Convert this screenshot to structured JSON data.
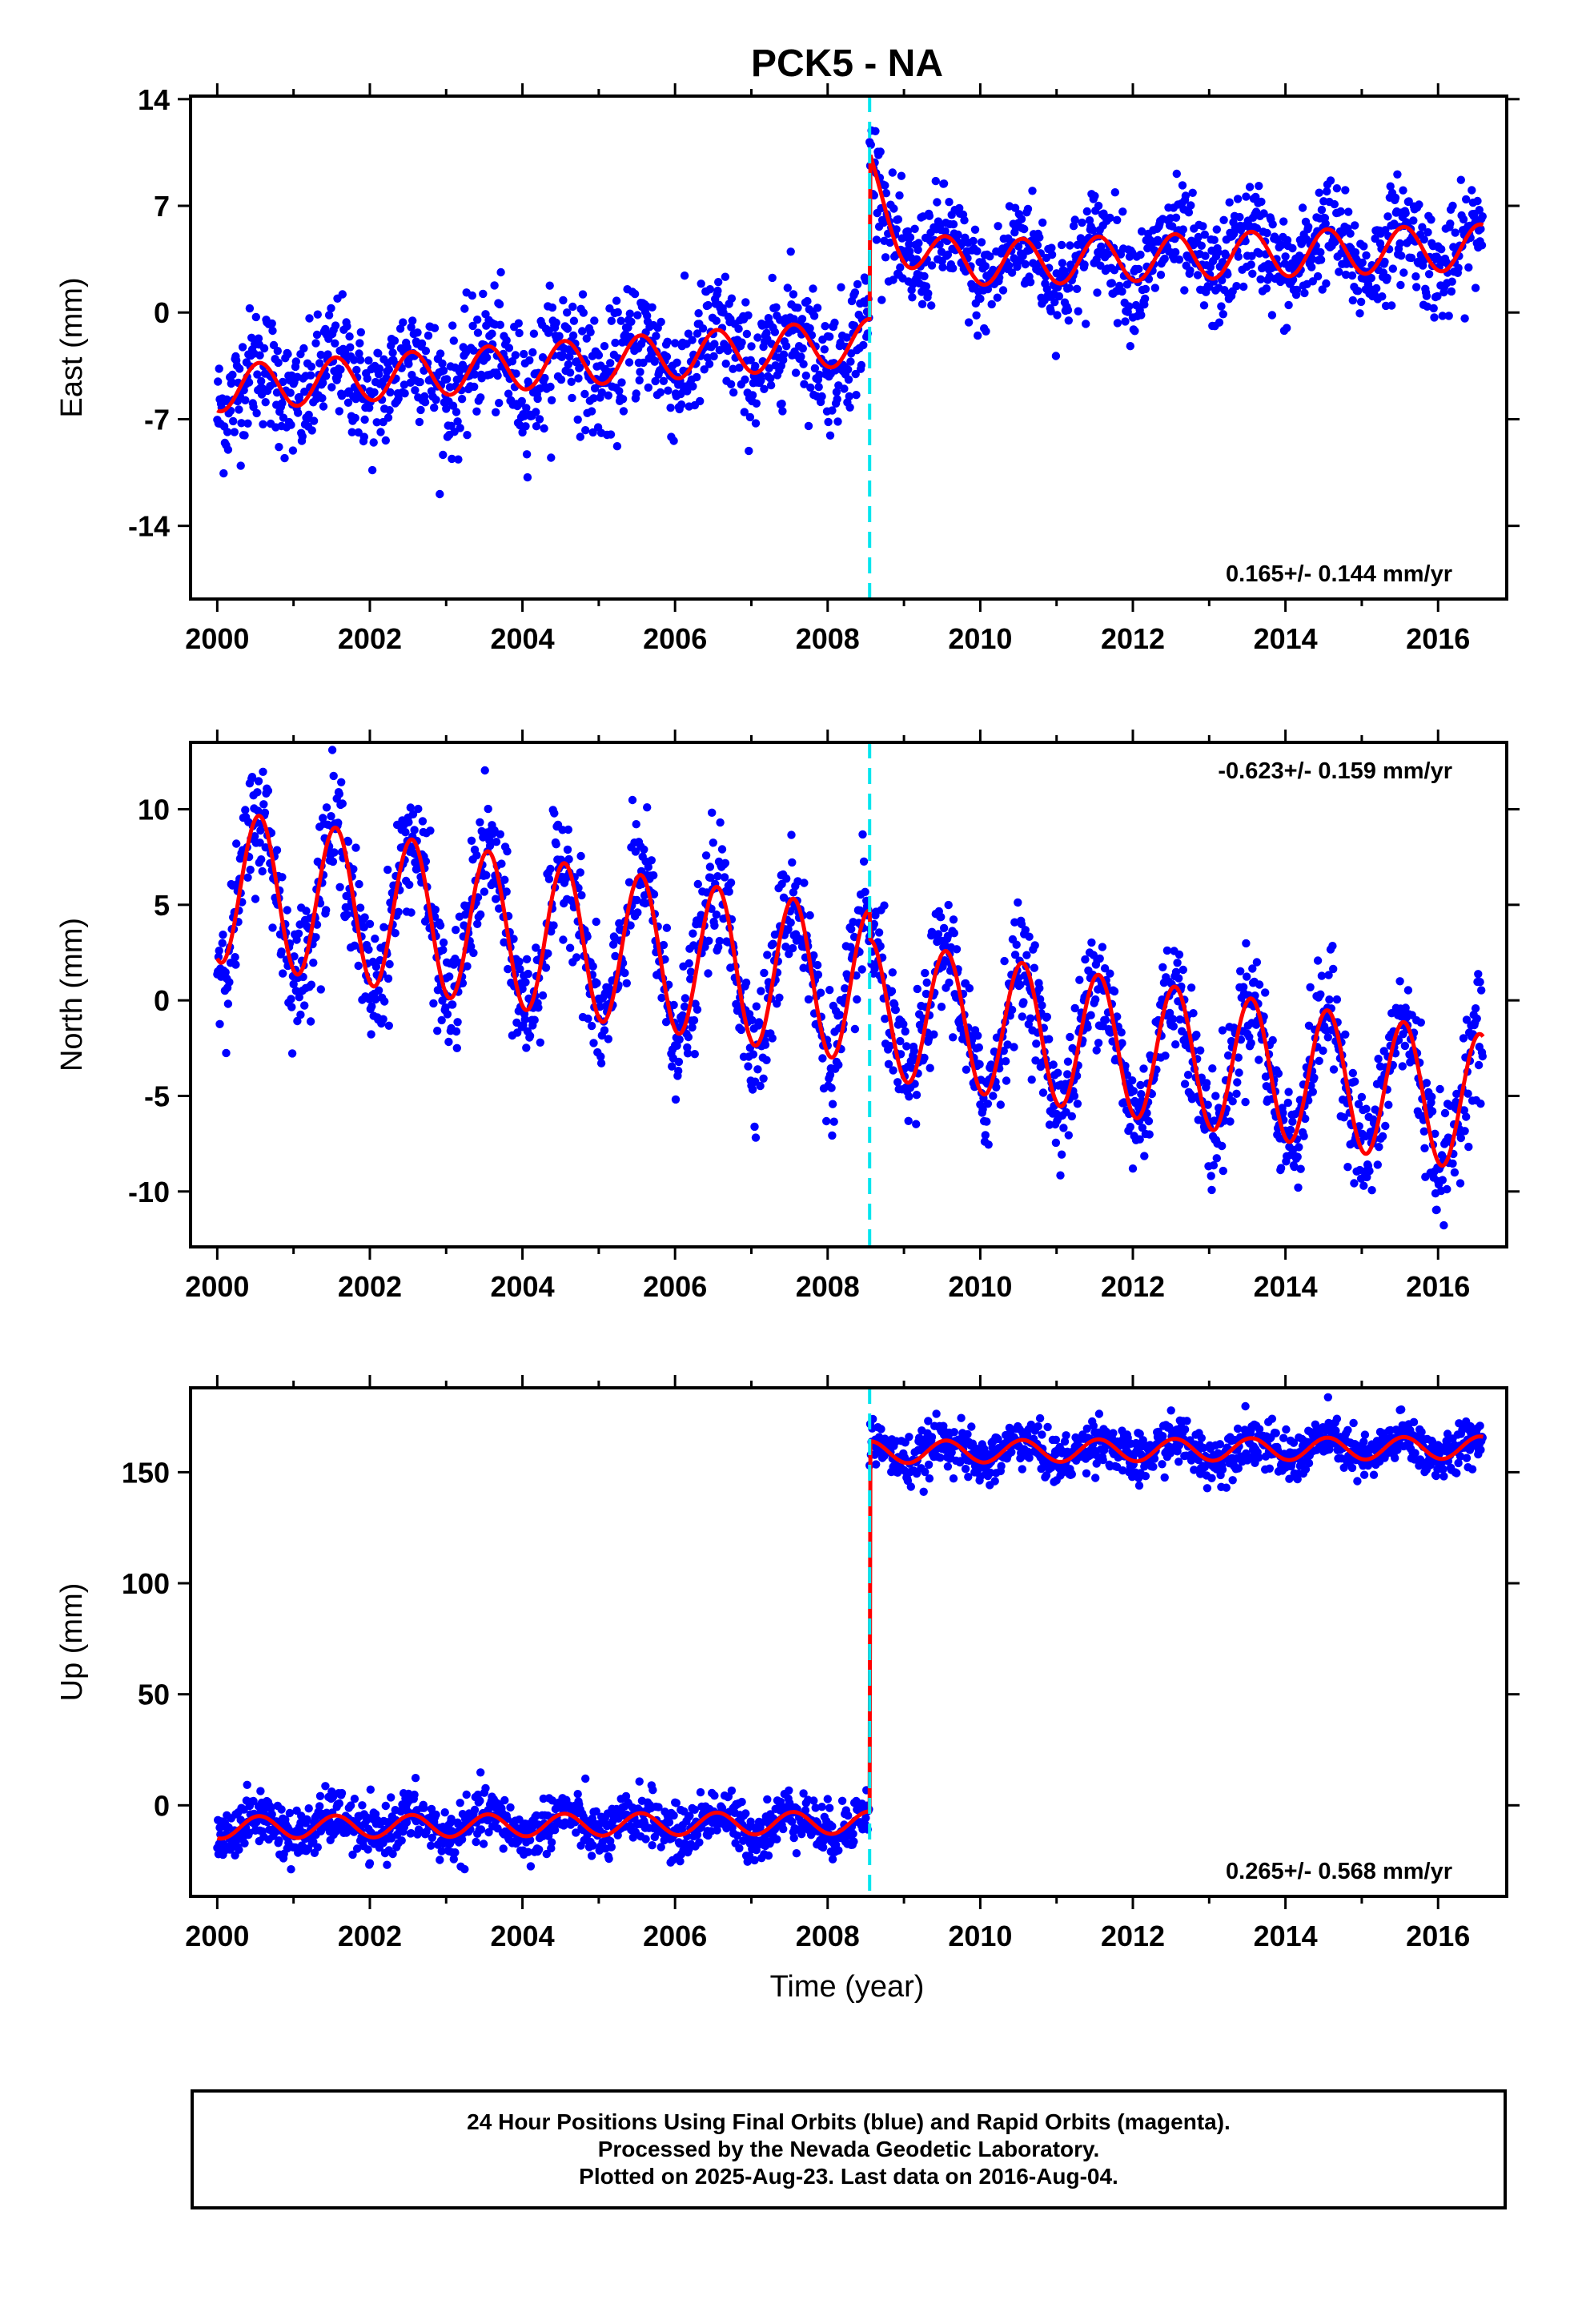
{
  "title": "PCK5 - NA",
  "colors": {
    "points": "#0000ff",
    "model": "#ff0000",
    "offset_line": "#00e5ee",
    "frame": "#000000"
  },
  "footer": {
    "line1": "24 Hour Positions Using Final Orbits (blue) and Rapid Orbits (magenta).",
    "line2": "Processed by the Nevada Geodetic Laboratory.",
    "line3": "Plotted on 2025-Aug-23. Last data on 2016-Aug-04."
  },
  "chart_data": [
    {
      "type": "scatter",
      "panel": "east",
      "ylabel": "East (mm)",
      "xlabel": "",
      "xlim": [
        1999.65,
        2016.9
      ],
      "ylim": [
        -18.8,
        14.2
      ],
      "xticks": [
        2000,
        2002,
        2004,
        2006,
        2008,
        2010,
        2012,
        2014,
        2016
      ],
      "yticks": [
        -14,
        -7,
        0,
        7,
        14
      ],
      "offset_epoch": 2008.55,
      "rate_label": "0.165+/- 0.144 mm/yr",
      "rate_position": "bottom-right",
      "data_range": [
        2000.0,
        2016.59
      ],
      "model": {
        "pre": {
          "a": -5.0,
          "b": 0.36,
          "amp": 1.5,
          "noise": 2.0
        },
        "post": {
          "a": 3.0,
          "b": 0.16,
          "amp": 1.5,
          "noise": 1.7
        },
        "post_transient": {
          "amp": 6.0,
          "tau": 0.35
        }
      }
    },
    {
      "type": "scatter",
      "panel": "north",
      "ylabel": "North (mm)",
      "xlabel": "",
      "xlim": [
        1999.65,
        2016.9
      ],
      "ylim": [
        -12.9,
        13.5
      ],
      "xticks": [
        2000,
        2002,
        2004,
        2006,
        2008,
        2010,
        2012,
        2014,
        2016
      ],
      "yticks": [
        -10,
        -5,
        0,
        5,
        10
      ],
      "offset_epoch": 2008.55,
      "rate_label": "-0.623+/- 0.159 mm/yr",
      "rate_position": "top-right",
      "data_range": [
        2000.0,
        2016.59
      ],
      "model": {
        "pre": {
          "a": 6.0,
          "b": -0.62,
          "amp": 4.0,
          "noise": 1.6
        },
        "post": {
          "a": -0.4,
          "b": -0.62,
          "amp": 3.6,
          "noise": 1.5
        },
        "post_transient": {
          "amp": 0,
          "tau": 1
        }
      }
    },
    {
      "type": "scatter",
      "panel": "up",
      "ylabel": "Up (mm)",
      "xlabel": "Time (year)",
      "xlim": [
        1999.65,
        2016.9
      ],
      "ylim": [
        -41,
        188
      ],
      "xticks": [
        2000,
        2002,
        2004,
        2006,
        2008,
        2010,
        2012,
        2014,
        2016
      ],
      "yticks": [
        0,
        50,
        100,
        150
      ],
      "offset_epoch": 2008.55,
      "rate_label": "0.265+/- 0.568 mm/yr",
      "rate_position": "bottom-right",
      "data_range": [
        2000.0,
        2016.59
      ],
      "model": {
        "pre": {
          "a": -10.0,
          "b": 0.265,
          "amp": 5.0,
          "noise": 6.0
        },
        "post": {
          "a": 159.0,
          "b": 0.265,
          "amp": 5.0,
          "noise": 5.5
        },
        "post_transient": {
          "amp": 0,
          "tau": 1
        }
      }
    }
  ]
}
